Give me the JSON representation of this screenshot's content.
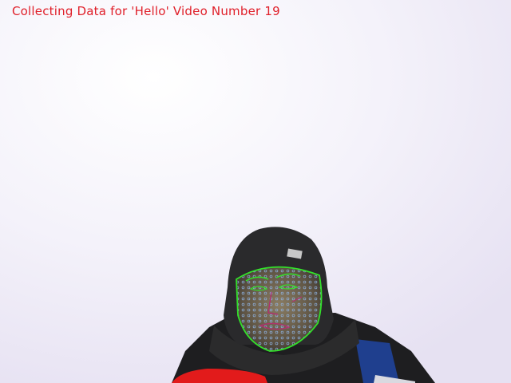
{
  "window": {
    "overlay_text": "Collecting Data for 'Hello' Video Number 19"
  },
  "colors": {
    "overlay_text": "#e0202a",
    "face_contour": "#33e02a",
    "face_mesh": "#8fb6e8",
    "background": "#f1eff8"
  },
  "scene": {
    "subject": "person-in-dark-hoodie",
    "overlays": [
      "face-contour",
      "face-mesh-landmarks"
    ]
  }
}
